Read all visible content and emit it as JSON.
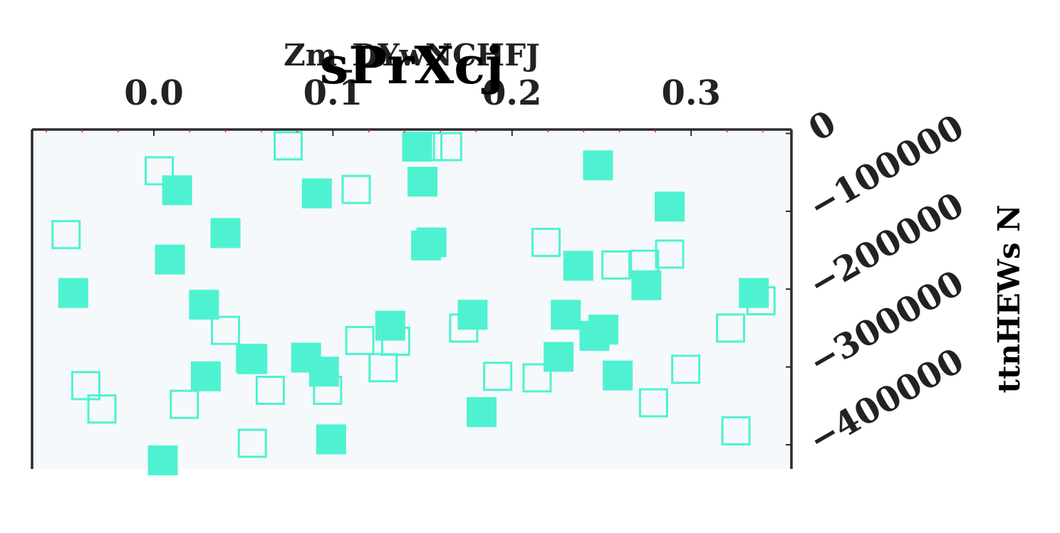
{
  "chart_data": {
    "type": "scatter",
    "title": "sPrXcj",
    "xlabel": "Zm_DYwNCHFJ",
    "ylabel": "ttnHEWs N",
    "xlim": [
      -0.068,
      0.356
    ],
    "ylim": [
      -431000,
      5000
    ],
    "x_ticks": [
      0.0,
      0.1,
      0.2,
      0.3
    ],
    "x_tick_labels": [
      "0.0",
      "0.1",
      "0.2",
      "0.3"
    ],
    "y_ticks": [
      0,
      -100000,
      -200000,
      -300000,
      -400000
    ],
    "y_tick_labels": [
      "0",
      "−100000",
      "−200000",
      "−300000",
      "−400000"
    ],
    "x_axis_position": "top",
    "y_axis_position": "right",
    "grid": false,
    "colors": {
      "marker": "#4ef2d1",
      "plot_background": "#f5f9fc",
      "axis": "#2b2b2b",
      "minor_tick": "#cc2222",
      "text": "#222222"
    },
    "series": [
      {
        "marker": "square-filled",
        "points": [
          [
            -0.045,
            -205000
          ],
          [
            0.013,
            -73000
          ],
          [
            0.009,
            -162000
          ],
          [
            0.028,
            -220000
          ],
          [
            0.029,
            -312000
          ],
          [
            0.04,
            -128000
          ],
          [
            0.055,
            -290000
          ],
          [
            0.085,
            -288000
          ],
          [
            0.095,
            -306000
          ],
          [
            0.091,
            -77000
          ],
          [
            0.099,
            -393000
          ],
          [
            0.132,
            -247000
          ],
          [
            0.147,
            -17000
          ],
          [
            0.15,
            -62000
          ],
          [
            0.152,
            -144000
          ],
          [
            0.155,
            -140000
          ],
          [
            0.005,
            -420000
          ],
          [
            0.178,
            -233000
          ],
          [
            0.183,
            -358000
          ],
          [
            0.226,
            -287000
          ],
          [
            0.23,
            -233000
          ],
          [
            0.237,
            -170000
          ],
          [
            0.246,
            -260000
          ],
          [
            0.248,
            -41000
          ],
          [
            0.251,
            -252000
          ],
          [
            0.259,
            -311000
          ],
          [
            0.275,
            -195000
          ],
          [
            0.288,
            -94000
          ],
          [
            0.335,
            -205000
          ]
        ]
      },
      {
        "marker": "square-open",
        "points": [
          [
            -0.049,
            -130000
          ],
          [
            -0.038,
            -324000
          ],
          [
            -0.029,
            -354000
          ],
          [
            0.003,
            -48000
          ],
          [
            0.017,
            -348000
          ],
          [
            0.04,
            -253000
          ],
          [
            0.054,
            -289000
          ],
          [
            0.055,
            -398000
          ],
          [
            0.065,
            -330000
          ],
          [
            0.075,
            -16000
          ],
          [
            0.097,
            -330000
          ],
          [
            0.113,
            -72000
          ],
          [
            0.115,
            -266000
          ],
          [
            0.128,
            -301000
          ],
          [
            0.135,
            -267000
          ],
          [
            0.153,
            -17000
          ],
          [
            0.164,
            -17000
          ],
          [
            0.173,
            -250000
          ],
          [
            0.192,
            -312000
          ],
          [
            0.214,
            -314000
          ],
          [
            0.219,
            -140000
          ],
          [
            0.258,
            -169000
          ],
          [
            0.274,
            -168000
          ],
          [
            0.279,
            -346000
          ],
          [
            0.288,
            -155000
          ],
          [
            0.297,
            -303000
          ],
          [
            0.322,
            -250000
          ],
          [
            0.325,
            -382000
          ],
          [
            0.339,
            -215000
          ]
        ]
      }
    ]
  }
}
